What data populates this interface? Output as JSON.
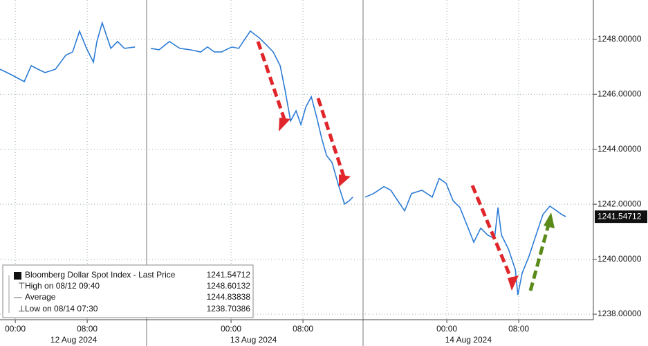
{
  "chart_data": {
    "type": "line",
    "series": [
      {
        "name": "Bloomberg Dollar Spot Index - Last Price",
        "color": "#2b7bd6",
        "x": [
          -1.69,
          -0.92,
          -0.15,
          1.0,
          1.77,
          2.54,
          3.31,
          4.46,
          5.62,
          6.38,
          7.15,
          7.92,
          8.69,
          9.08,
          9.67,
          10.62,
          11.38,
          12.15,
          13.31,
          null,
          15.08,
          16.0,
          17.15,
          18.31,
          19.46,
          20.62,
          21.38,
          22.15,
          22.92,
          24.08,
          24.85,
          25.62,
          26.15,
          27.15,
          27.92,
          28.69,
          29.46,
          30.0,
          30.62,
          31.23,
          31.77,
          32.31,
          32.92,
          33.54,
          34.08,
          34.62,
          35.23,
          36.0,
          36.62,
          37.15,
          37.54,
          null,
          38.92,
          39.85,
          41.0,
          41.77,
          42.54,
          43.31,
          44.08,
          45.23,
          46.38,
          47.15,
          47.92,
          48.69,
          49.46,
          50.23,
          51.0,
          51.77,
          52.54,
          53.31,
          53.69,
          54.08,
          54.85,
          55.62,
          55.9,
          56.38,
          57.15,
          57.92,
          58.69,
          59.46,
          60.23,
          60.77,
          61.23
        ],
        "values": [
          1246.91,
          1246.79,
          1246.66,
          1246.46,
          1247.04,
          1246.91,
          1246.79,
          1246.91,
          1247.42,
          1247.54,
          1248.3,
          1247.67,
          1247.17,
          1247.92,
          1248.6,
          1247.67,
          1247.92,
          1247.67,
          1247.72,
          null,
          1247.67,
          1247.62,
          1247.92,
          1247.67,
          1247.62,
          1247.54,
          1247.72,
          1247.54,
          1247.54,
          1247.72,
          1247.67,
          1248.05,
          1248.3,
          1248.05,
          1247.8,
          1247.54,
          1247.04,
          1246.16,
          1245.03,
          1245.4,
          1244.9,
          1245.53,
          1245.91,
          1245.15,
          1244.4,
          1243.77,
          1243.52,
          1242.64,
          1242.01,
          1242.13,
          1242.26,
          null,
          1242.26,
          1242.39,
          1242.64,
          1242.51,
          1242.13,
          1241.76,
          1242.39,
          1242.51,
          1242.26,
          1242.94,
          1242.76,
          1242.13,
          1241.88,
          1241.25,
          1240.62,
          1241.13,
          1240.88,
          1240.75,
          1241.88,
          1240.88,
          1240.37,
          1239.62,
          1238.7,
          1239.49,
          1240.12,
          1240.88,
          1241.63,
          1241.93,
          1241.76,
          1241.63,
          1241.55
        ]
      }
    ],
    "xlim": [
      -1.7,
      64.3
    ],
    "xticks": [
      {
        "value": 0,
        "label": "00:00"
      },
      {
        "value": 8,
        "label": "08:00"
      },
      {
        "value": 24,
        "label": "00:00"
      },
      {
        "value": 32,
        "label": "08:00"
      },
      {
        "value": 48,
        "label": "00:00"
      },
      {
        "value": 56,
        "label": "08:00"
      }
    ],
    "date_labels": [
      {
        "value": 6.5,
        "label": "12 Aug 2024"
      },
      {
        "value": 26.5,
        "label": "13 Aug 2024"
      },
      {
        "value": 50.4,
        "label": "14 Aug 2024"
      }
    ],
    "ylim": [
      1237.8,
      1249.43
    ],
    "yticks": [
      {
        "value": 1238,
        "label": "1238.00000"
      },
      {
        "value": 1240,
        "label": "1240.00000"
      },
      {
        "value": 1242,
        "label": "1242.00000"
      },
      {
        "value": 1244,
        "label": "1244.00000"
      },
      {
        "value": 1246,
        "label": "1246.00000"
      },
      {
        "value": 1248,
        "label": "1248.00000"
      }
    ],
    "last_value": {
      "value": 1241.54712,
      "label": "1241.54712"
    },
    "grid": true,
    "legend": {
      "rows": [
        {
          "label": "Bloomberg Dollar Spot Index - Last Price",
          "value": "1241.54712"
        },
        {
          "label": "High on 08/12 09:40",
          "value": "1248.60132"
        },
        {
          "label": "Average",
          "value": "1244.83838"
        },
        {
          "label": "Low on 08/14 07:30",
          "value": "1238.70386"
        }
      ]
    }
  }
}
